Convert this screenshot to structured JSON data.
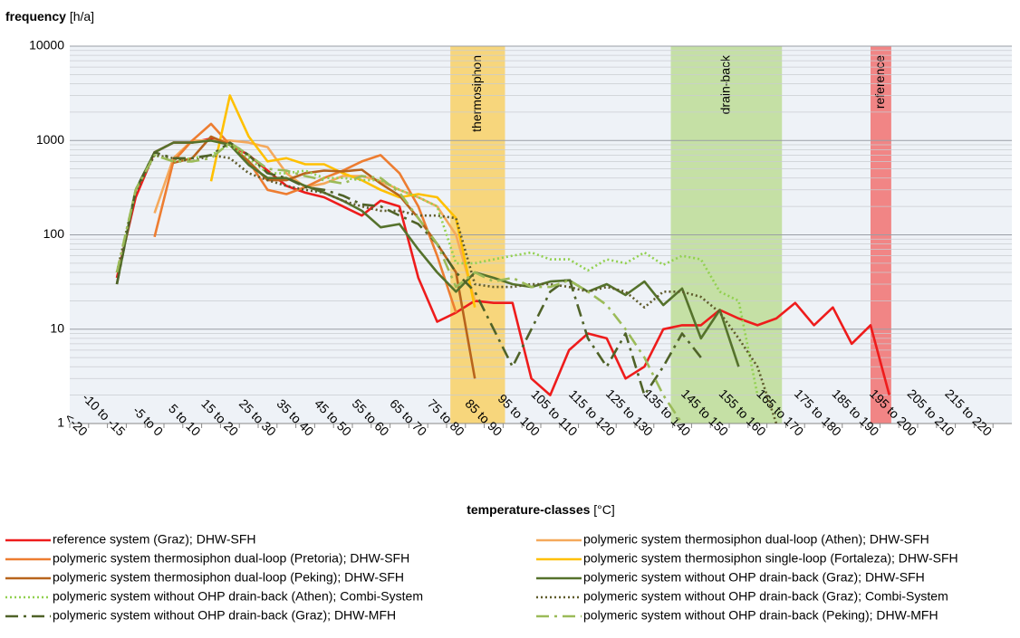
{
  "chart_data": {
    "type": "line",
    "y_label": "frequency",
    "y_unit": "[h/a]",
    "x_label": "temperature-classes",
    "x_unit": "[°C]",
    "log_scale": true,
    "grid": true,
    "minor_grid": true,
    "legend_columns": 2,
    "ylim": [
      1,
      10000
    ],
    "yticks": [
      1,
      10,
      100,
      1000,
      10000
    ],
    "categories": [
      "<-20",
      null,
      "-10 to -15",
      null,
      "-5 to 0",
      null,
      "5 to 10",
      null,
      "15 to 20",
      null,
      "25 to 30",
      null,
      "35 to 40",
      null,
      "45 to 50",
      null,
      "55 to 60",
      null,
      "65 to 70",
      null,
      "75 to 80",
      null,
      "85 to 90",
      null,
      "95 to 100",
      null,
      "105 to 110",
      null,
      "115 to 120",
      null,
      "125 to 130",
      null,
      "135 to 140",
      null,
      "145 to 150",
      null,
      "155 to 160",
      null,
      "165 to 170",
      null,
      "175 to 180",
      null,
      "185 to 190",
      null,
      "195 to 200",
      null,
      "205 to 210",
      null,
      "215 to 220",
      null
    ],
    "bands": [
      {
        "label": "thermosiphon",
        "color": "#f7d67c",
        "xrange": [
          20.2,
          23.1
        ]
      },
      {
        "label": "drain-back",
        "color": "#c5e0a5",
        "xrange": [
          31.9,
          37.8
        ]
      },
      {
        "label": "reference",
        "color": "#f18585",
        "xrange": [
          42.5,
          43.6
        ]
      }
    ],
    "series": [
      {
        "name": "reference system (Graz); DHW-SFH",
        "color": "#ee1c1c",
        "dash": "solid",
        "values": [
          null,
          null,
          35,
          250,
          750,
          950,
          950,
          1050,
          900,
          700,
          480,
          330,
          280,
          250,
          200,
          160,
          230,
          200,
          35,
          12,
          15,
          20,
          19,
          19,
          3,
          2,
          6,
          9,
          8,
          3,
          4,
          10,
          11,
          11,
          16,
          13,
          11,
          13,
          19,
          11,
          17,
          7,
          11,
          2,
          null,
          null,
          null,
          null,
          null,
          null
        ]
      },
      {
        "name": "polymeric system thermosiphon dual-loop (Athen); DHW-SFH",
        "color": "#f5a95c",
        "dash": "solid",
        "values": [
          null,
          null,
          null,
          null,
          170,
          650,
          1000,
          1000,
          1000,
          950,
          850,
          450,
          320,
          350,
          420,
          420,
          370,
          300,
          250,
          200,
          100,
          20,
          null,
          null,
          null,
          null,
          null,
          null,
          null,
          null,
          null,
          null,
          null,
          null,
          null,
          null,
          null,
          null,
          null,
          null,
          null,
          null,
          null,
          null,
          null,
          null,
          null,
          null,
          null,
          null
        ]
      },
      {
        "name": "polymeric system thermosiphon dual-loop (Pretoria); DHW-SFH",
        "color": "#ed7d31",
        "dash": "solid",
        "values": [
          null,
          null,
          null,
          null,
          95,
          600,
          1000,
          1500,
          900,
          600,
          300,
          270,
          320,
          400,
          480,
          600,
          700,
          450,
          200,
          60,
          15,
          null,
          null,
          null,
          null,
          null,
          null,
          null,
          null,
          null,
          null,
          null,
          null,
          null,
          null,
          null,
          null,
          null,
          null,
          null,
          null,
          null,
          null,
          null,
          null,
          null,
          null,
          null,
          null,
          null
        ]
      },
      {
        "name": "polymeric system thermosiphon single-loop (Fortaleza); DHW-SFH",
        "color": "#ffc000",
        "dash": "solid",
        "values": [
          null,
          null,
          null,
          null,
          null,
          null,
          null,
          370,
          3000,
          1100,
          600,
          650,
          560,
          560,
          450,
          380,
          300,
          250,
          270,
          250,
          150,
          17,
          null,
          null,
          null,
          null,
          null,
          null,
          null,
          null,
          null,
          null,
          null,
          null,
          null,
          null,
          null,
          null,
          null,
          null,
          null,
          null,
          null,
          null,
          null,
          null,
          null,
          null,
          null,
          null
        ]
      },
      {
        "name": "polymeric system thermosiphon dual-loop (Peking); DHW-SFH",
        "color": "#b8641c",
        "dash": "solid",
        "values": [
          null,
          null,
          null,
          null,
          null,
          580,
          650,
          1100,
          900,
          600,
          380,
          380,
          450,
          480,
          470,
          490,
          350,
          260,
          150,
          80,
          40,
          3,
          null,
          null,
          null,
          null,
          null,
          null,
          null,
          null,
          null,
          null,
          null,
          null,
          null,
          null,
          null,
          null,
          null,
          null,
          null,
          null,
          null,
          null,
          null,
          null,
          null,
          null,
          null,
          null
        ]
      },
      {
        "name": "polymeric system without OHP drain-back (Graz); DHW-SFH",
        "color": "#55722c",
        "dash": "solid",
        "values": [
          null,
          null,
          30,
          300,
          750,
          950,
          950,
          1000,
          900,
          550,
          400,
          400,
          330,
          280,
          230,
          180,
          120,
          130,
          70,
          40,
          25,
          40,
          35,
          30,
          28,
          32,
          33,
          25,
          30,
          23,
          32,
          18,
          27,
          8,
          16,
          4,
          null,
          null,
          null,
          null,
          null,
          null,
          null,
          null,
          null,
          null,
          null,
          null,
          null,
          null
        ]
      },
      {
        "name": "polymeric system without OHP drain-back (Athen); Combi-System",
        "color": "#92d050",
        "dash": "dotted",
        "values": [
          null,
          null,
          40,
          300,
          700,
          600,
          650,
          700,
          900,
          650,
          450,
          450,
          480,
          400,
          400,
          380,
          380,
          300,
          250,
          200,
          50,
          50,
          55,
          60,
          65,
          55,
          55,
          42,
          55,
          50,
          65,
          48,
          60,
          55,
          25,
          20,
          2,
          null,
          null,
          null,
          null,
          null,
          null,
          null,
          null,
          null,
          null,
          null,
          null,
          null
        ]
      },
      {
        "name": "polymeric system without OHP drain-back (Graz); Combi-System",
        "color": "#5e5a2a",
        "dash": "dotted",
        "values": [
          null,
          null,
          40,
          280,
          700,
          650,
          600,
          700,
          650,
          450,
          380,
          330,
          300,
          280,
          230,
          200,
          180,
          180,
          160,
          160,
          150,
          30,
          28,
          28,
          30,
          30,
          28,
          25,
          28,
          25,
          17,
          25,
          25,
          22,
          15,
          8,
          4,
          1,
          null,
          null,
          null,
          null,
          null,
          null,
          null,
          null,
          null,
          null,
          null,
          null
        ]
      },
      {
        "name": "polymeric system without OHP drain-back (Graz); DHW-MFH",
        "color": "#4f6228",
        "dash": "dashdot",
        "values": [
          null,
          null,
          30,
          300,
          750,
          650,
          650,
          700,
          950,
          700,
          450,
          400,
          320,
          300,
          260,
          210,
          200,
          160,
          130,
          80,
          40,
          25,
          10,
          4,
          10,
          25,
          35,
          8,
          4,
          9,
          2,
          4,
          9,
          5,
          null,
          null,
          null,
          null,
          null,
          null,
          null,
          null,
          null,
          null,
          null,
          null,
          null,
          null,
          null,
          null
        ]
      },
      {
        "name": "polymeric system without OHP drain-back (Peking); DHW-MFH",
        "color": "#9bbb59",
        "dash": "dashdot",
        "values": [
          null,
          null,
          40,
          300,
          700,
          600,
          600,
          650,
          950,
          700,
          500,
          480,
          420,
          380,
          350,
          420,
          400,
          280,
          150,
          80,
          28,
          40,
          32,
          35,
          28,
          28,
          33,
          25,
          18,
          10,
          5,
          2,
          1,
          null,
          null,
          null,
          null,
          null,
          null,
          null,
          null,
          null,
          null,
          null,
          null,
          null,
          null,
          null,
          null,
          null
        ]
      }
    ]
  }
}
